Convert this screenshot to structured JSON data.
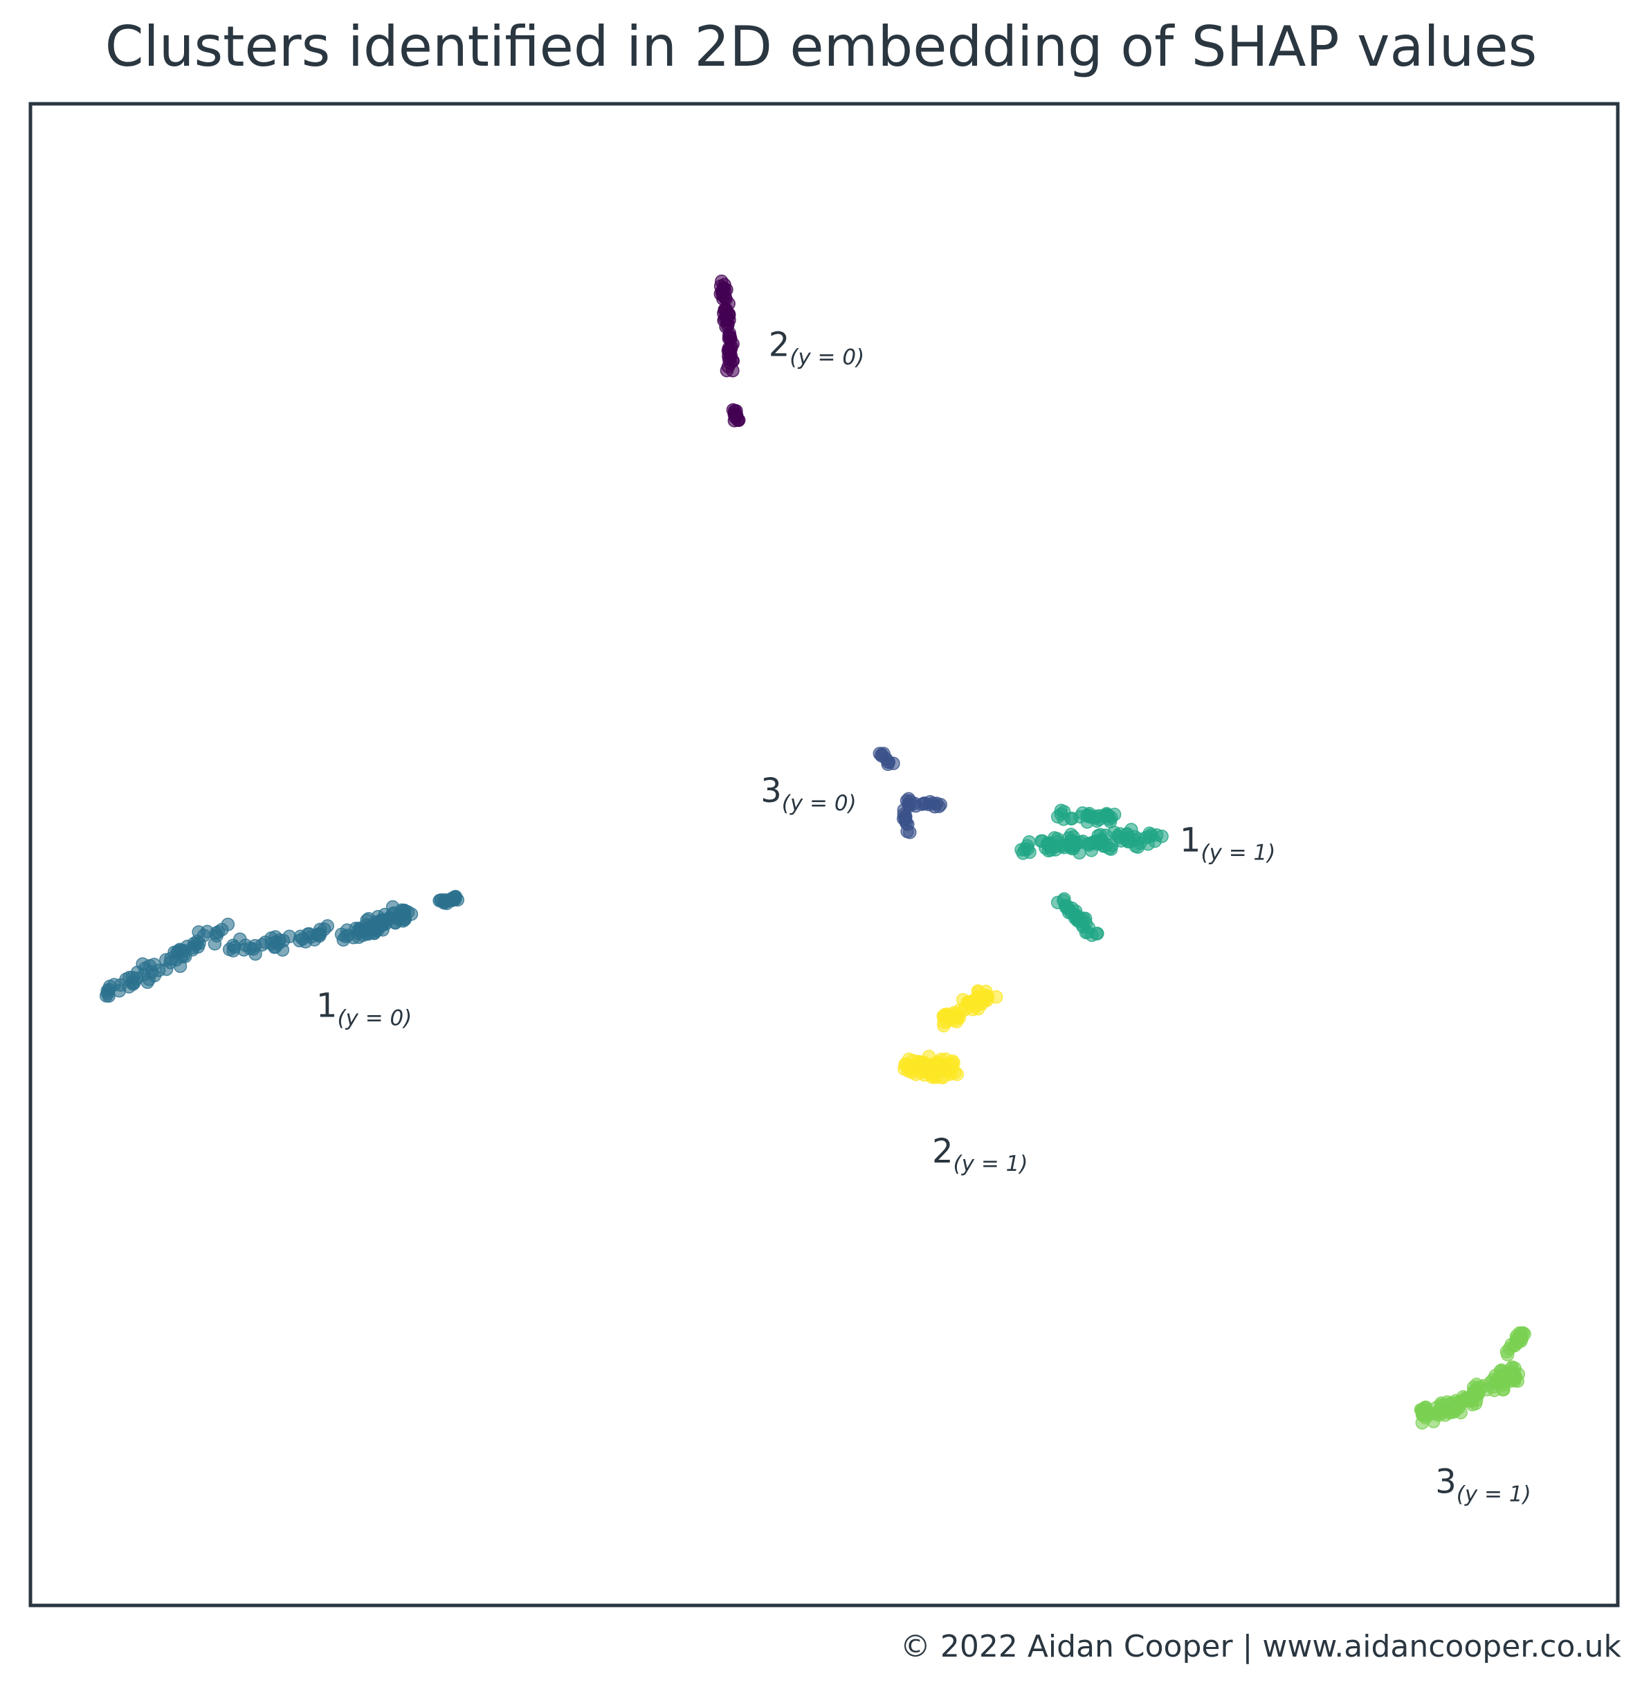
{
  "chart_data": {
    "type": "scatter",
    "title": "Clusters identified in 2D embedding of SHAP values",
    "xlabel": "",
    "ylabel": "",
    "axes_visible": false,
    "grid": false,
    "xlim": [
      0,
      100
    ],
    "ylim": [
      0,
      100
    ],
    "marker_alpha": 0.6,
    "clusters": [
      {
        "id": "c2-y0",
        "label": "2",
        "subscript": "(y = 0)",
        "color": "#440154",
        "count": 70,
        "segments": [
          {
            "x0": 43.6,
            "y0": 88.3,
            "x1": 44.2,
            "y1": 82.3,
            "spread": 0.25,
            "n": 58
          },
          {
            "x0": 44.3,
            "y0": 79.7,
            "x1": 44.6,
            "y1": 78.6,
            "spread": 0.18,
            "n": 12
          }
        ],
        "label_anchor": [
          46.5,
          83.2
        ]
      },
      {
        "id": "c3-y0",
        "label": "3",
        "subscript": "(y = 0)",
        "color": "#3b528b",
        "count": 38,
        "segments": [
          {
            "x0": 53.5,
            "y0": 57.0,
            "x1": 54.5,
            "y1": 55.6,
            "spread": 0.15,
            "n": 9
          },
          {
            "x0": 54.8,
            "y0": 53.4,
            "x1": 57.3,
            "y1": 53.4,
            "spread": 0.25,
            "n": 18
          },
          {
            "x0": 55.0,
            "y0": 52.8,
            "x1": 55.3,
            "y1": 51.2,
            "spread": 0.25,
            "n": 11
          }
        ],
        "label_anchor": [
          46.0,
          53.5
        ]
      },
      {
        "id": "c1-y0",
        "label": "1",
        "subscript": "(y = 0)",
        "color": "#2c728e",
        "count": 190,
        "segments": [
          {
            "x0": 4.5,
            "y0": 40.5,
            "x1": 12.5,
            "y1": 45.1,
            "spread": 0.6,
            "n": 60
          },
          {
            "x0": 12.5,
            "y0": 43.6,
            "x1": 20.0,
            "y1": 45.0,
            "spread": 0.45,
            "n": 40
          },
          {
            "x0": 20.0,
            "y0": 44.8,
            "x1": 24.0,
            "y1": 46.0,
            "spread": 0.6,
            "n": 72
          },
          {
            "x0": 25.5,
            "y0": 46.8,
            "x1": 26.9,
            "y1": 47.1,
            "spread": 0.2,
            "n": 18
          }
        ],
        "label_anchor": [
          18.0,
          39.2
        ]
      },
      {
        "id": "c1-y1",
        "label": "1",
        "subscript": "(y = 1)",
        "color": "#21a685",
        "count": 150,
        "segments": [
          {
            "x0": 62.5,
            "y0": 50.3,
            "x1": 70.8,
            "y1": 51.3,
            "spread": 0.55,
            "n": 90
          },
          {
            "x0": 64.4,
            "y0": 52.6,
            "x1": 68.4,
            "y1": 52.4,
            "spread": 0.35,
            "n": 30
          },
          {
            "x0": 64.8,
            "y0": 47.0,
            "x1": 67.2,
            "y1": 44.6,
            "spread": 0.4,
            "n": 30
          }
        ],
        "label_anchor": [
          72.4,
          50.2
        ]
      },
      {
        "id": "c2-y1",
        "label": "2",
        "subscript": "(y = 1)",
        "color": "#fde725",
        "count": 130,
        "segments": [
          {
            "x0": 55.2,
            "y0": 35.8,
            "x1": 58.2,
            "y1": 35.8,
            "spread": 0.6,
            "n": 85
          },
          {
            "x0": 57.5,
            "y0": 38.8,
            "x1": 60.5,
            "y1": 40.8,
            "spread": 0.5,
            "n": 45
          }
        ],
        "label_anchor": [
          56.8,
          29.5
        ]
      },
      {
        "id": "c3-y1",
        "label": "3",
        "subscript": "(y = 1)",
        "color": "#7ad151",
        "count": 140,
        "segments": [
          {
            "x0": 88.0,
            "y0": 12.3,
            "x1": 93.5,
            "y1": 15.5,
            "spread": 0.55,
            "n": 105
          },
          {
            "x0": 93.0,
            "y0": 17.0,
            "x1": 94.2,
            "y1": 18.2,
            "spread": 0.3,
            "n": 20
          },
          {
            "x0": 87.7,
            "y0": 13.2,
            "x1": 88.0,
            "y1": 12.4,
            "spread": 0.2,
            "n": 15
          }
        ],
        "label_anchor": [
          88.5,
          7.5
        ]
      }
    ]
  },
  "footer": {
    "copyright": "© 2022 Aidan Cooper | www.aidancooper.co.uk"
  },
  "colors": {
    "frame": "#2a3640",
    "text": "#2a3640",
    "background": "#ffffff"
  }
}
